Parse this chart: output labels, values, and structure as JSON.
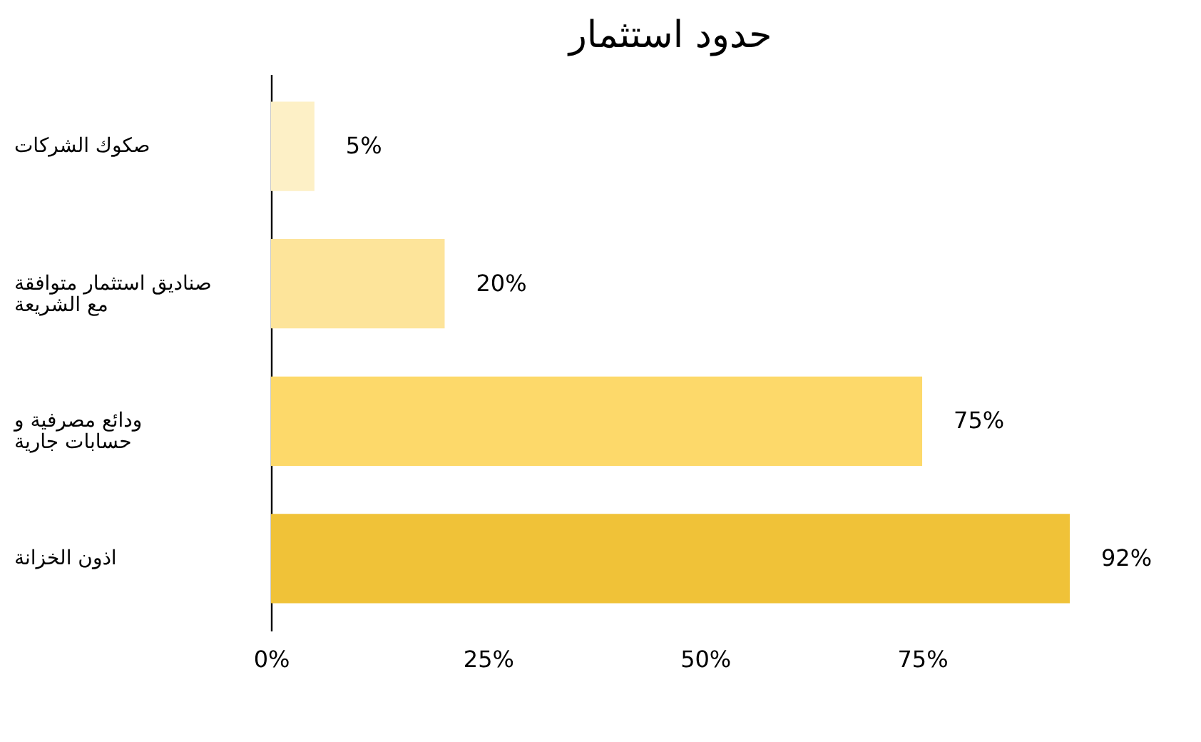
{
  "chart_data": {
    "type": "bar",
    "orientation": "horizontal",
    "title": "حدود استثمار",
    "categories": [
      "صكوك الشركات",
      "صناديق استثمار متوافقة مع الشريعة",
      "ودائع مصرفية و حسابات جارية",
      "اذون الخزانة"
    ],
    "values": [
      5,
      20,
      75,
      92
    ],
    "colors": [
      "#fdf0c6",
      "#fde49a",
      "#fdd96a",
      "#f0c238"
    ],
    "value_labels": [
      "5%",
      "20%",
      "75%",
      "92%"
    ],
    "xlim": [
      0,
      92
    ],
    "xticks": [
      {
        "value": 0,
        "label": "0%"
      },
      {
        "value": 25,
        "label": "25%"
      },
      {
        "value": 50,
        "label": "50%"
      },
      {
        "value": 75,
        "label": "75%"
      }
    ],
    "grid": false
  }
}
